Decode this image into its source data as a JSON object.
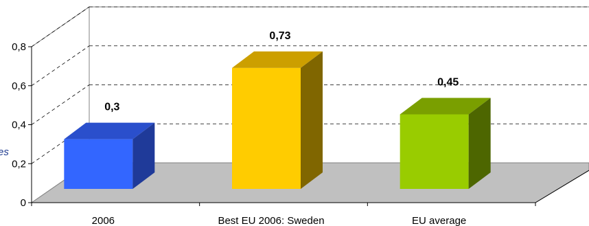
{
  "chart_data": {
    "type": "bar",
    "categories": [
      "2006",
      "Best EU 2006: Sweden",
      "EU average"
    ],
    "values": [
      0.3,
      0.73,
      0.45
    ],
    "value_labels": [
      "0,3",
      "0,73",
      "0,45"
    ],
    "title": "",
    "xlabel": "",
    "ylabel": "",
    "ylim": [
      0,
      0.8
    ],
    "yticks": [
      0,
      0.2,
      0.4,
      0.6,
      0.8
    ],
    "ytick_labels": [
      "0",
      "0,2",
      "0,4",
      "0,6",
      "0,8"
    ],
    "grid": true,
    "style": "3d",
    "colors": {
      "front": [
        "#3366ff",
        "#ffcc00",
        "#99cc00"
      ],
      "top": [
        "#2a4fcc",
        "#cc9f00",
        "#7a9f00"
      ],
      "side": [
        "#1f3a99",
        "#806600",
        "#4d6600"
      ],
      "floor": "#c0c0c0"
    }
  },
  "left_fragment": "es"
}
